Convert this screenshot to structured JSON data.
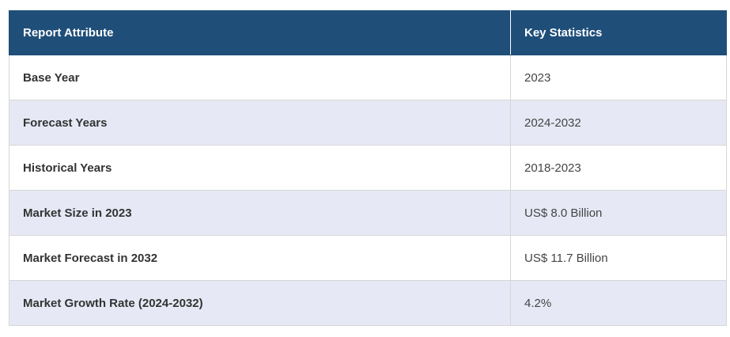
{
  "table": {
    "headers": {
      "attribute": "Report Attribute",
      "statistics": "Key Statistics"
    },
    "rows": [
      {
        "attribute": "Base Year",
        "value": "2023"
      },
      {
        "attribute": "Forecast Years",
        "value": "2024-2032"
      },
      {
        "attribute": "Historical Years",
        "value": "2018-2023"
      },
      {
        "attribute": "Market Size in 2023",
        "value": "US$ 8.0 Billion"
      },
      {
        "attribute": "Market Forecast in 2032",
        "value": "US$ 11.7 Billion"
      },
      {
        "attribute": "Market Growth Rate (2024-2032)",
        "value": "4.2%"
      }
    ]
  },
  "colors": {
    "header_bg": "#1f4e79",
    "header_text": "#ffffff",
    "row_alt_bg": "#e6e9f5",
    "border": "#d6d6d6"
  }
}
